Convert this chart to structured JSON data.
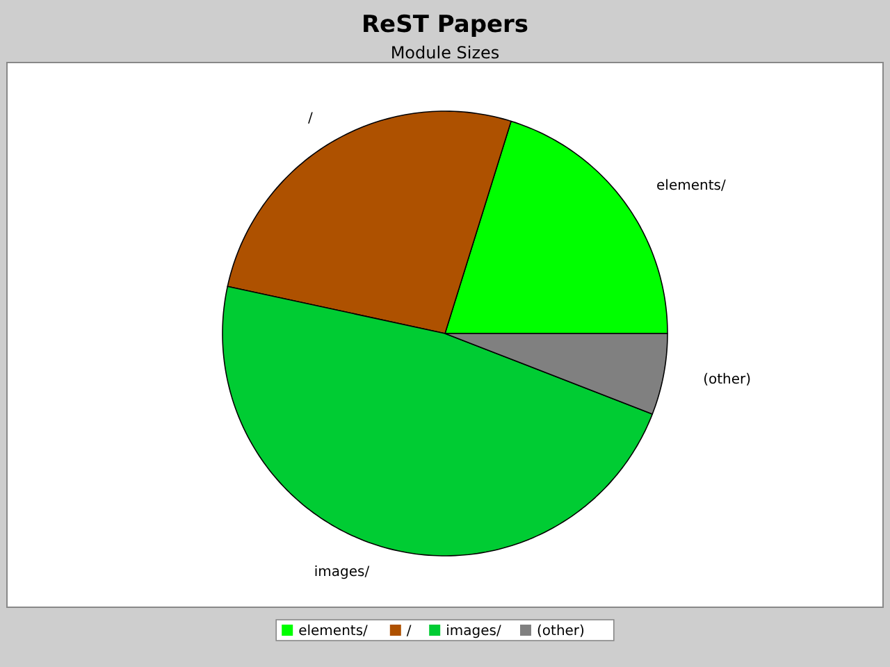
{
  "chart_data": {
    "type": "pie",
    "title": "ReST Papers",
    "subtitle": "Module Sizes",
    "categories": [
      "elements/",
      "/",
      "images/",
      "(other)"
    ],
    "values": [
      20.2,
      26.4,
      47.5,
      5.9
    ],
    "colors": [
      "#00ff00",
      "#ae5100",
      "#00cc33",
      "#808080"
    ],
    "legend": "bottom"
  }
}
